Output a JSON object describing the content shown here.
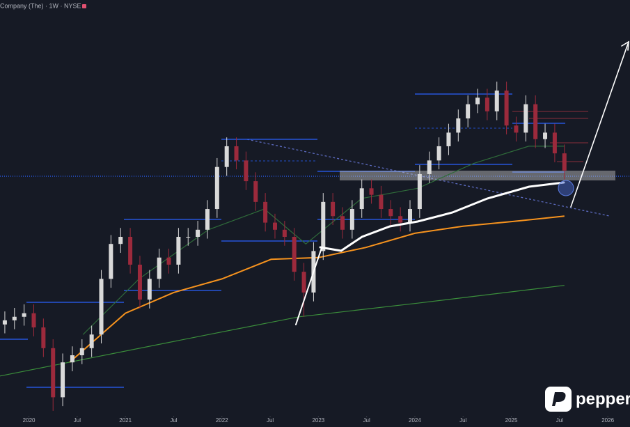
{
  "chart_data": {
    "type": "candlestick",
    "title": "Company (The) · 1W · NYSE",
    "logo": "pepperstone",
    "up_color": "#d9d9d9",
    "down_color": "#9c2a3c",
    "xlim": [
      2019.7,
      2026.23
    ],
    "ylim": [
      30,
      100
    ],
    "xticks": [
      {
        "value": 2020,
        "label": "2020"
      },
      {
        "value": 2020.5,
        "label": "Jul"
      },
      {
        "value": 2021,
        "label": "2021"
      },
      {
        "value": 2021.5,
        "label": "Jul"
      },
      {
        "value": 2022,
        "label": "2022"
      },
      {
        "value": 2022.5,
        "label": "Jul"
      },
      {
        "value": 2023,
        "label": "2023"
      },
      {
        "value": 2023.5,
        "label": "Jul"
      },
      {
        "value": 2024,
        "label": "2024"
      },
      {
        "value": 2024.5,
        "label": "Jul"
      },
      {
        "value": 2025,
        "label": "2025"
      },
      {
        "value": 2025.5,
        "label": "Jul"
      },
      {
        "value": 2026,
        "label": "2026"
      }
    ],
    "x": [
      2019.75,
      2019.85,
      2019.95,
      2020.05,
      2020.15,
      2020.25,
      2020.35,
      2020.45,
      2020.55,
      2020.65,
      2020.75,
      2020.85,
      2020.95,
      2021.05,
      2021.15,
      2021.25,
      2021.35,
      2021.45,
      2021.55,
      2021.65,
      2021.75,
      2021.85,
      2021.95,
      2022.05,
      2022.15,
      2022.25,
      2022.35,
      2022.45,
      2022.55,
      2022.65,
      2022.75,
      2022.85,
      2022.95,
      2023.05,
      2023.15,
      2023.25,
      2023.35,
      2023.45,
      2023.55,
      2023.65,
      2023.75,
      2023.85,
      2023.95,
      2024.05,
      2024.15,
      2024.25,
      2024.35,
      2024.45,
      2024.55,
      2024.65,
      2024.75,
      2024.85,
      2024.95,
      2025.05,
      2025.15,
      2025.25,
      2025.35,
      2025.45,
      2025.55
    ],
    "open": [
      45.2,
      45.9,
      46.5,
      47.1,
      44.7,
      41.2,
      32.9,
      38.8,
      40,
      41.2,
      43.5,
      52.9,
      58.8,
      60,
      55.3,
      49.4,
      52.9,
      56.5,
      55.3,
      60,
      60,
      61.2,
      64.7,
      71.8,
      75.3,
      72.9,
      69.4,
      65.9,
      62.4,
      61.2,
      60,
      54.1,
      50.6,
      57.6,
      65.9,
      63.5,
      61.2,
      64.7,
      68.2,
      67.1,
      64.7,
      63.5,
      62.4,
      64.7,
      70.6,
      72.9,
      75.3,
      77.6,
      80,
      82.4,
      83.5,
      81.2,
      84.7,
      78.8,
      77.6,
      82.4,
      76.5,
      77.6,
      74.1
    ],
    "high": [
      47.4,
      48,
      48.6,
      48.6,
      46.2,
      42.7,
      40.3,
      41.5,
      42.7,
      45,
      54.4,
      60.3,
      61.5,
      61.5,
      56.8,
      54.4,
      58,
      58,
      61.5,
      61.5,
      62.7,
      66.2,
      73.3,
      76.8,
      76.8,
      74.4,
      70.9,
      67.4,
      63.9,
      62.7,
      61.5,
      55.6,
      59.1,
      67.4,
      67.4,
      65,
      66.2,
      69.7,
      69.7,
      68.6,
      66.2,
      65,
      66.2,
      72.1,
      74.4,
      76.8,
      79.1,
      81.5,
      83.9,
      85,
      85,
      86.2,
      86.2,
      80.3,
      83.9,
      83.9,
      79.1,
      79.1,
      75.6
    ],
    "low": [
      43.7,
      44.4,
      45,
      43.2,
      39.7,
      30.6,
      31.4,
      37.3,
      38.5,
      39.7,
      42,
      51.4,
      57.3,
      53.8,
      47.9,
      47.9,
      51.4,
      53.8,
      53.8,
      58.5,
      58.5,
      59.7,
      63.2,
      70.3,
      71.4,
      67.9,
      64.4,
      60.9,
      59.7,
      58.5,
      52.6,
      46.5,
      49.1,
      56.1,
      62,
      59.7,
      59.7,
      63.2,
      65.6,
      63.2,
      62,
      60.9,
      60.9,
      63.2,
      69.1,
      71.4,
      73.8,
      76.1,
      78.5,
      80.9,
      79.7,
      79.7,
      77.3,
      76.1,
      76.1,
      75,
      75,
      72.6,
      69.7
    ],
    "close": [
      45.9,
      46.5,
      47.1,
      44.7,
      41.2,
      32.9,
      38.8,
      40,
      41.2,
      43.5,
      52.9,
      58.8,
      60,
      55.3,
      49.4,
      52.9,
      56.5,
      55.3,
      60,
      60,
      61.2,
      64.7,
      71.8,
      75.3,
      72.9,
      69.4,
      65.9,
      62.4,
      61.2,
      60,
      54.1,
      50.6,
      57.6,
      65.9,
      63.5,
      61.2,
      64.7,
      68.2,
      67.1,
      64.7,
      63.5,
      62.4,
      64.7,
      70.6,
      72.9,
      75.3,
      77.6,
      80,
      82.4,
      83.5,
      81.2,
      84.7,
      78.8,
      77.6,
      82.4,
      76.5,
      77.6,
      74.1,
      71.2
    ],
    "overlays": [
      {
        "type": "line",
        "color": "#f7931e",
        "x": [
          2020.42,
          2021.0,
          2021.5,
          2022.0,
          2022.51,
          2023.0,
          2023.49,
          2024.0,
          2024.5,
          2025.02,
          2025.55
        ],
        "values": [
          38.8,
          47.1,
          50.6,
          52.9,
          56.2,
          56.5,
          58.2,
          60.6,
          61.8,
          62.6,
          63.5
        ]
      },
      {
        "type": "line",
        "color": "#3b8f3b",
        "x": [
          2019.7,
          2021.86,
          2022.8,
          2024.03,
          2025.55
        ],
        "values": [
          36.5,
          43.5,
          46.5,
          48.8,
          51.8
        ]
      },
      {
        "type": "line",
        "color": "#2f6b3a",
        "x": [
          2020.56,
          2021.14,
          2021.86,
          2022.44,
          2022.87,
          2023.45,
          2024.03,
          2024.61,
          2025.18,
          2025.55
        ],
        "values": [
          43.5,
          52.9,
          61.2,
          64.7,
          58.8,
          66.5,
          68.2,
          72.4,
          75.3,
          75.3
        ]
      }
    ]
  }
}
